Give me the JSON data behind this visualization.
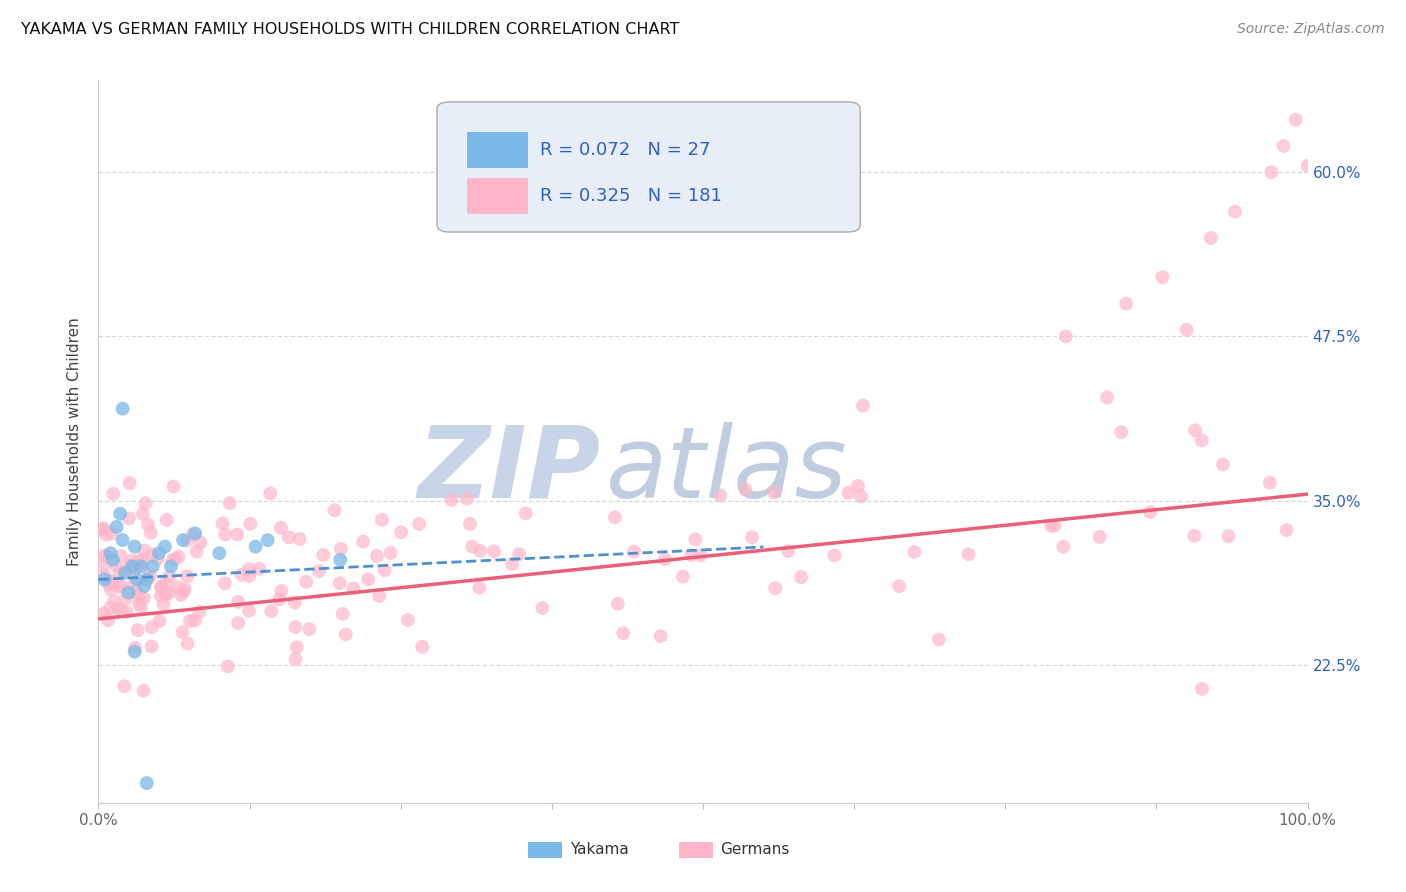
{
  "title": "YAKAMA VS GERMAN FAMILY HOUSEHOLDS WITH CHILDREN CORRELATION CHART",
  "source": "Source: ZipAtlas.com",
  "ylabel": "Family Households with Children",
  "xlim": [
    0,
    100
  ],
  "ylim": [
    12,
    67
  ],
  "yticks": [
    22.5,
    35.0,
    47.5,
    60.0
  ],
  "xtick_labels": [
    "0.0%",
    "",
    "",
    "",
    "",
    "",
    "",
    "",
    "100.0%"
  ],
  "ytick_labels": [
    "22.5%",
    "35.0%",
    "47.5%",
    "60.0%"
  ],
  "legend_r_yakama": "R = 0.072",
  "legend_n_yakama": "N = 27",
  "legend_r_german": "R = 0.325",
  "legend_n_german": "N = 181",
  "legend_label_yakama": "Yakama",
  "legend_label_german": "Germans",
  "color_yakama": "#7ab8e8",
  "color_german": "#ffb6c8",
  "color_trend_yakama": "#5090d0",
  "color_trend_german": "#e8607a",
  "color_text_blue": "#3060c0",
  "color_axis_tick": "#666666",
  "background_color": "#ffffff",
  "watermark_zip_color": "#c8d4e8",
  "watermark_atlas_color": "#c0cce0",
  "grid_color": "#d8d8d8",
  "legend_box_color": "#e8eef8",
  "trend_yakama_start": 29.0,
  "trend_yakama_end": 33.5,
  "trend_german_start": 26.0,
  "trend_german_end": 35.5
}
